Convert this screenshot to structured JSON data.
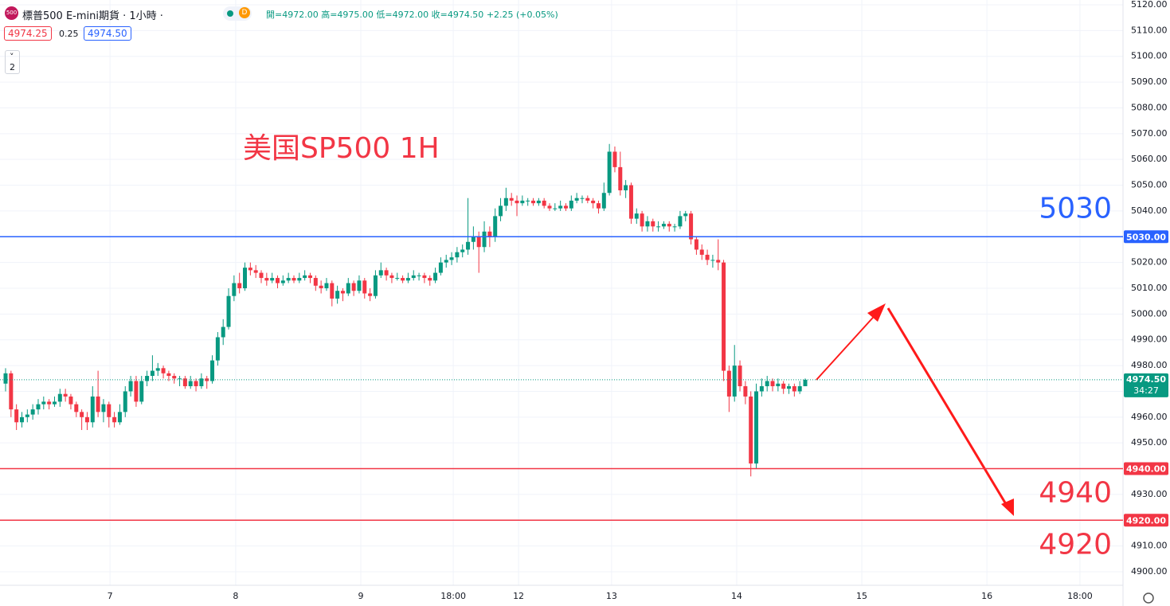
{
  "header": {
    "badge": "500",
    "symbol": "標普500 E-mini期貨 · 1小時 ·",
    "flag": "D",
    "ohlc": "開=4972.00 高=4975.00 低=4972.00 收=4974.50",
    "change": "+2.25 (+0.05%)",
    "bid": "4974.25",
    "spread": "0.25",
    "ask": "4974.50",
    "indicators": "2"
  },
  "chart_data": {
    "type": "candlestick",
    "annotation": "美国SP500 1H",
    "up_color": "#089981",
    "down_color": "#f23645",
    "xlim": [
      -1,
      207
    ],
    "ylim": [
      4900,
      5120
    ],
    "yticks": [
      {
        "value": 4900,
        "label": "4900.00"
      },
      {
        "value": 4910,
        "label": "4910.00"
      },
      {
        "value": 4920,
        "label": "4920.00"
      },
      {
        "value": 4930,
        "label": "4930.00"
      },
      {
        "value": 4940,
        "label": "4940.00"
      },
      {
        "value": 4950,
        "label": "4950.00"
      },
      {
        "value": 4960,
        "label": "4960.00"
      },
      {
        "value": 4970,
        "label": "4970.00"
      },
      {
        "value": 4980,
        "label": "4980.00"
      },
      {
        "value": 4990,
        "label": "4990.00"
      },
      {
        "value": 5000,
        "label": "5000.00"
      },
      {
        "value": 5010,
        "label": "5010.00"
      },
      {
        "value": 5020,
        "label": "5020.00"
      },
      {
        "value": 5030,
        "label": "5030.00"
      },
      {
        "value": 5040,
        "label": "5040.00"
      },
      {
        "value": 5050,
        "label": "5050.00"
      },
      {
        "value": 5060,
        "label": "5060.00"
      },
      {
        "value": 5070,
        "label": "5070.00"
      },
      {
        "value": 5080,
        "label": "5080.00"
      },
      {
        "value": 5090,
        "label": "5090.00"
      },
      {
        "value": 5100,
        "label": "5100.00"
      },
      {
        "value": 5110,
        "label": "5110.00"
      },
      {
        "value": 5120,
        "label": "5120.00"
      }
    ],
    "xticks": [
      {
        "value": 19.2,
        "label": "7"
      },
      {
        "value": 42.3,
        "label": "8"
      },
      {
        "value": 65.3,
        "label": "9"
      },
      {
        "value": 82.3,
        "label": "18:00"
      },
      {
        "value": 94.3,
        "label": "12"
      },
      {
        "value": 111.4,
        "label": "13"
      },
      {
        "value": 134.4,
        "label": "14"
      },
      {
        "value": 157.4,
        "label": "15"
      },
      {
        "value": 180.4,
        "label": "16"
      },
      {
        "value": 197.5,
        "label": "18:00"
      }
    ],
    "grid": true,
    "hlines": [
      {
        "value": 5030,
        "label": "5030.00",
        "color": "#2962ff"
      },
      {
        "value": 4940,
        "label": "4940.00",
        "color": "#f23645"
      },
      {
        "value": 4920,
        "label": "4920.00",
        "color": "#f23645"
      }
    ],
    "last_price": {
      "value": 4974.5,
      "label": "4974.50",
      "countdown": "34:27"
    },
    "candles": [
      [
        4973,
        4979,
        4970,
        4977
      ],
      [
        4977,
        4978,
        4960,
        4963
      ],
      [
        4963,
        4965,
        4955,
        4958
      ],
      [
        4958,
        4962,
        4956,
        4960
      ],
      [
        4960,
        4963,
        4958,
        4961
      ],
      [
        4961,
        4965,
        4959,
        4963
      ],
      [
        4963,
        4967,
        4961,
        4965
      ],
      [
        4965,
        4968,
        4963,
        4966
      ],
      [
        4966,
        4967,
        4963,
        4965
      ],
      [
        4965,
        4968,
        4964,
        4966
      ],
      [
        4966,
        4971,
        4964,
        4969
      ],
      [
        4969,
        4971,
        4966,
        4968
      ],
      [
        4968,
        4969,
        4963,
        4965
      ],
      [
        4965,
        4966,
        4960,
        4962
      ],
      [
        4962,
        4963,
        4955,
        4960
      ],
      [
        4960,
        4962,
        4955,
        4958
      ],
      [
        4958,
        4972,
        4956,
        4968
      ],
      [
        4968,
        4978,
        4960,
        4962
      ],
      [
        4962,
        4967,
        4958,
        4965
      ],
      [
        4965,
        4966,
        4956,
        4960
      ],
      [
        4960,
        4962,
        4956,
        4958
      ],
      [
        4958,
        4965,
        4957,
        4962
      ],
      [
        4962,
        4972,
        4960,
        4970
      ],
      [
        4970,
        4976,
        4968,
        4974
      ],
      [
        4974,
        4976,
        4964,
        4966
      ],
      [
        4966,
        4976,
        4965,
        4974
      ],
      [
        4974,
        4978,
        4972,
        4976
      ],
      [
        4976,
        4984,
        4974,
        4978
      ],
      [
        4978,
        4981,
        4976,
        4979
      ],
      [
        4979,
        4980,
        4975,
        4977
      ],
      [
        4977,
        4978,
        4974,
        4976
      ],
      [
        4976,
        4977,
        4973,
        4975
      ],
      [
        4975,
        4976,
        4972,
        4975
      ],
      [
        4975,
        4976,
        4971,
        4972
      ],
      [
        4972,
        4976,
        4971,
        4974
      ],
      [
        4974,
        4975,
        4970,
        4972
      ],
      [
        4972,
        4977,
        4971,
        4975
      ],
      [
        4975,
        4976,
        4971,
        4974
      ],
      [
        4974,
        4984,
        4973,
        4982
      ],
      [
        4982,
        4993,
        4980,
        4991
      ],
      [
        4991,
        4998,
        4988,
        4995
      ],
      [
        4995,
        5010,
        4994,
        5007
      ],
      [
        5007,
        5015,
        5005,
        5012
      ],
      [
        5012,
        5016,
        5008,
        5010
      ],
      [
        5010,
        5020,
        5009,
        5018
      ],
      [
        5018,
        5020,
        5015,
        5017
      ],
      [
        5017,
        5019,
        5014,
        5016
      ],
      [
        5016,
        5017,
        5012,
        5014
      ],
      [
        5014,
        5016,
        5011,
        5013
      ],
      [
        5013,
        5016,
        5012,
        5014
      ],
      [
        5014,
        5015,
        5010,
        5012
      ],
      [
        5012,
        5015,
        5011,
        5013
      ],
      [
        5013,
        5016,
        5012,
        5014
      ],
      [
        5014,
        5015,
        5012,
        5013
      ],
      [
        5013,
        5016,
        5012,
        5014
      ],
      [
        5014,
        5017,
        5013,
        5015
      ],
      [
        5015,
        5016,
        5012,
        5014
      ],
      [
        5014,
        5015,
        5009,
        5011
      ],
      [
        5011,
        5013,
        5008,
        5010
      ],
      [
        5010,
        5014,
        5009,
        5012
      ],
      [
        5012,
        5013,
        5003,
        5006
      ],
      [
        5006,
        5011,
        5004,
        5009
      ],
      [
        5009,
        5010,
        5005,
        5008
      ],
      [
        5008,
        5014,
        5007,
        5012
      ],
      [
        5012,
        5013,
        5007,
        5009
      ],
      [
        5009,
        5015,
        5008,
        5013
      ],
      [
        5013,
        5014,
        5006,
        5008
      ],
      [
        5008,
        5010,
        5005,
        5007
      ],
      [
        5007,
        5017,
        5006,
        5015
      ],
      [
        5015,
        5020,
        5014,
        5017
      ],
      [
        5017,
        5018,
        5013,
        5015
      ],
      [
        5015,
        5016,
        5012,
        5014
      ],
      [
        5014,
        5016,
        5013,
        5014
      ],
      [
        5014,
        5015,
        5012,
        5013
      ],
      [
        5013,
        5016,
        5012,
        5014
      ],
      [
        5014,
        5017,
        5013,
        5015
      ],
      [
        5015,
        5016,
        5013,
        5015
      ],
      [
        5015,
        5016,
        5012,
        5014
      ],
      [
        5014,
        5015,
        5011,
        5013
      ],
      [
        5013,
        5018,
        5012,
        5016
      ],
      [
        5016,
        5022,
        5015,
        5020
      ],
      [
        5020,
        5023,
        5018,
        5021
      ],
      [
        5021,
        5024,
        5019,
        5022
      ],
      [
        5022,
        5026,
        5020,
        5024
      ],
      [
        5024,
        5027,
        5022,
        5025
      ],
      [
        5025,
        5045,
        5023,
        5028
      ],
      [
        5028,
        5034,
        5025,
        5030
      ],
      [
        5030,
        5032,
        5016,
        5026
      ],
      [
        5026,
        5036,
        5024,
        5032
      ],
      [
        5032,
        5034,
        5026,
        5030
      ],
      [
        5030,
        5041,
        5028,
        5038
      ],
      [
        5038,
        5045,
        5036,
        5042
      ],
      [
        5042,
        5049,
        5040,
        5045
      ],
      [
        5045,
        5047,
        5042,
        5044
      ],
      [
        5044,
        5046,
        5038,
        5043
      ],
      [
        5043,
        5046,
        5042,
        5044
      ],
      [
        5044,
        5045,
        5042,
        5044
      ],
      [
        5044,
        5045,
        5042,
        5043
      ],
      [
        5043,
        5045,
        5042,
        5044
      ],
      [
        5044,
        5045,
        5041,
        5042
      ],
      [
        5042,
        5043,
        5040,
        5041
      ],
      [
        5041,
        5043,
        5040,
        5041
      ],
      [
        5041,
        5044,
        5040,
        5042
      ],
      [
        5042,
        5043,
        5040,
        5041
      ],
      [
        5041,
        5046,
        5040,
        5044
      ],
      [
        5044,
        5047,
        5043,
        5045
      ],
      [
        5045,
        5046,
        5043,
        5045
      ],
      [
        5045,
        5046,
        5043,
        5044
      ],
      [
        5044,
        5045,
        5041,
        5043
      ],
      [
        5043,
        5044,
        5039,
        5041
      ],
      [
        5041,
        5051,
        5040,
        5047
      ],
      [
        5047,
        5066,
        5046,
        5063
      ],
      [
        5063,
        5065,
        5055,
        5057
      ],
      [
        5057,
        5063,
        5046,
        5048
      ],
      [
        5048,
        5052,
        5045,
        5050
      ],
      [
        5050,
        5051,
        5035,
        5037
      ],
      [
        5037,
        5041,
        5035,
        5039
      ],
      [
        5039,
        5040,
        5032,
        5034
      ],
      [
        5034,
        5038,
        5032,
        5036
      ],
      [
        5036,
        5037,
        5032,
        5034
      ],
      [
        5034,
        5036,
        5032,
        5034
      ],
      [
        5034,
        5036,
        5033,
        5035
      ],
      [
        5035,
        5036,
        5032,
        5034
      ],
      [
        5034,
        5035,
        5032,
        5034
      ],
      [
        5034,
        5040,
        5033,
        5038
      ],
      [
        5038,
        5040,
        5036,
        5039
      ],
      [
        5039,
        5040,
        5027,
        5029
      ],
      [
        5029,
        5030,
        5023,
        5025
      ],
      [
        5025,
        5027,
        5021,
        5023
      ],
      [
        5023,
        5025,
        5019,
        5021
      ],
      [
        5021,
        5023,
        5018,
        5021
      ],
      [
        5021,
        5029,
        5017,
        5020
      ],
      [
        5020,
        5021,
        4974,
        4978
      ],
      [
        4978,
        4980,
        4962,
        4968
      ],
      [
        4968,
        4988,
        4966,
        4980
      ],
      [
        4980,
        4982,
        4970,
        4972
      ],
      [
        4972,
        4974,
        4965,
        4968
      ],
      [
        4968,
        4970,
        4937,
        4942
      ],
      [
        4942,
        4973,
        4940,
        4970
      ],
      [
        4970,
        4975,
        4968,
        4972
      ],
      [
        4972,
        4976,
        4970,
        4974
      ],
      [
        4974,
        4975,
        4970,
        4972
      ],
      [
        4972,
        4975,
        4970,
        4973
      ],
      [
        4973,
        4974,
        4969,
        4971
      ],
      [
        4971,
        4973,
        4969,
        4972
      ],
      [
        4972,
        4973,
        4968,
        4970
      ],
      [
        4970,
        4974,
        4969,
        4972
      ],
      [
        4972,
        4975,
        4972,
        4974.5
      ]
    ]
  }
}
